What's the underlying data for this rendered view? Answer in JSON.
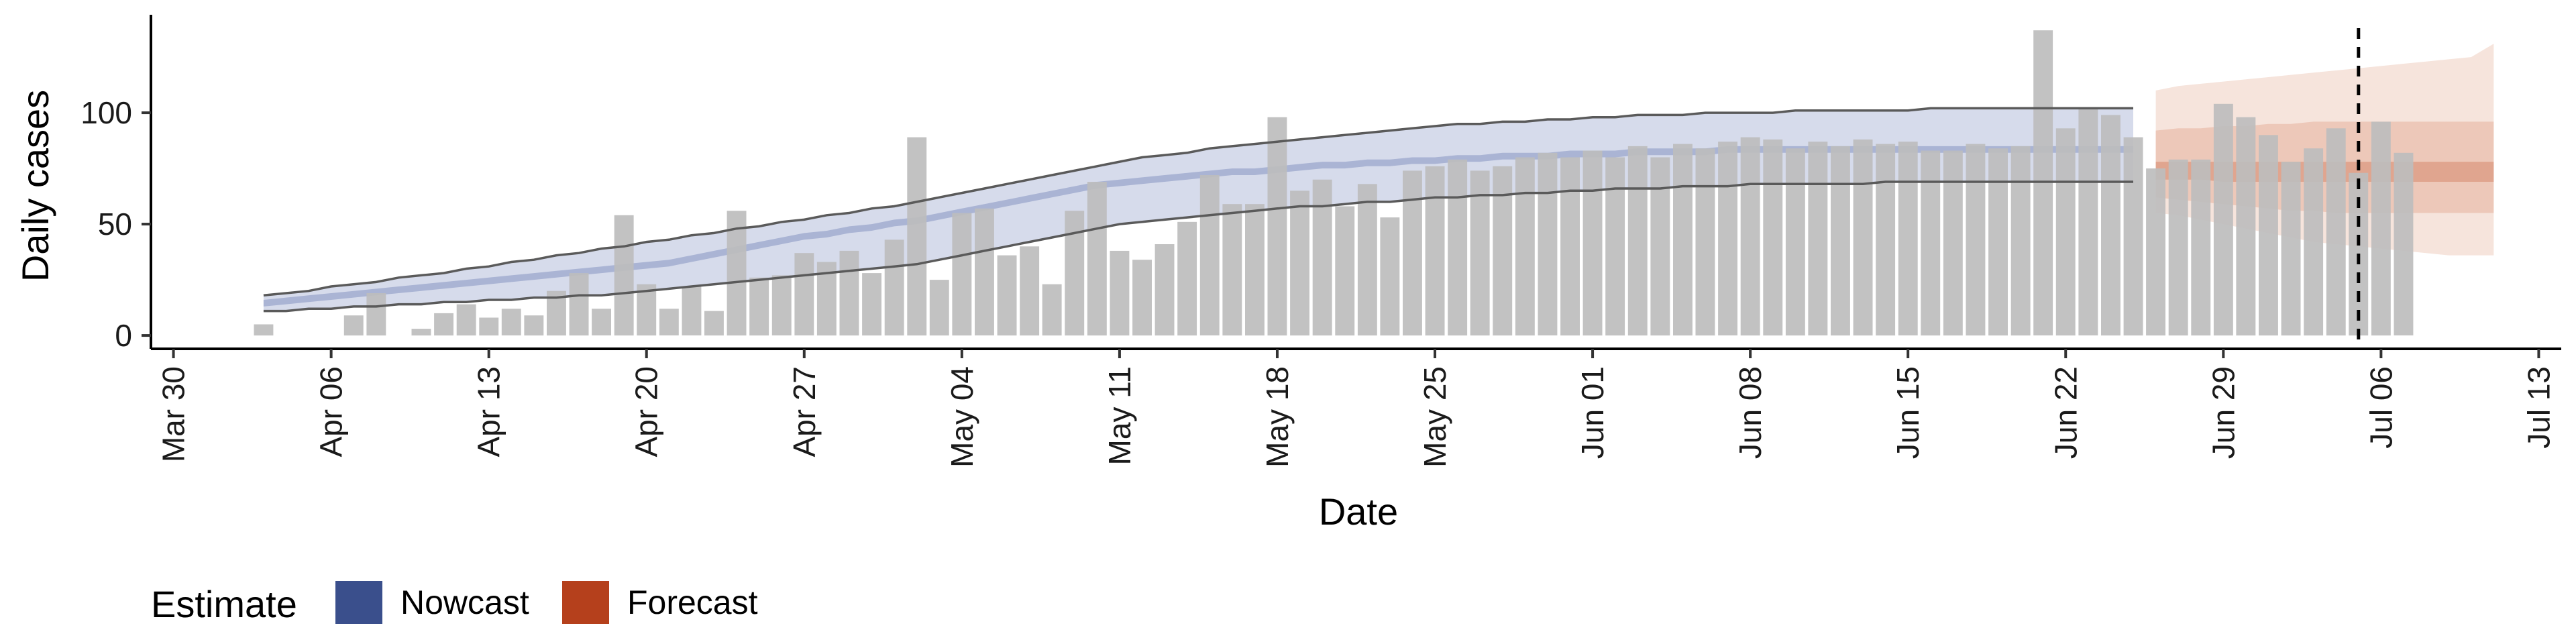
{
  "chart_data": {
    "type": "bar",
    "xlabel": "Date",
    "ylabel": "Daily cases",
    "x_axis_type": "date",
    "xlim": [
      "2020-03-29",
      "2020-07-14"
    ],
    "ylim": [
      -6,
      144
    ],
    "x_ticks": [
      {
        "date": "2020-03-30",
        "label": "Mar 30"
      },
      {
        "date": "2020-04-06",
        "label": "Apr 06"
      },
      {
        "date": "2020-04-13",
        "label": "Apr 13"
      },
      {
        "date": "2020-04-20",
        "label": "Apr 20"
      },
      {
        "date": "2020-04-27",
        "label": "Apr 27"
      },
      {
        "date": "2020-05-04",
        "label": "May 04"
      },
      {
        "date": "2020-05-11",
        "label": "May 11"
      },
      {
        "date": "2020-05-18",
        "label": "May 18"
      },
      {
        "date": "2020-05-25",
        "label": "May 25"
      },
      {
        "date": "2020-06-01",
        "label": "Jun 01"
      },
      {
        "date": "2020-06-08",
        "label": "Jun 08"
      },
      {
        "date": "2020-06-15",
        "label": "Jun 15"
      },
      {
        "date": "2020-06-22",
        "label": "Jun 22"
      },
      {
        "date": "2020-06-29",
        "label": "Jun 29"
      },
      {
        "date": "2020-07-06",
        "label": "Jul 06"
      },
      {
        "date": "2020-07-13",
        "label": "Jul 13"
      }
    ],
    "y_ticks": [
      0,
      50,
      100
    ],
    "grid": false,
    "legend_position": "bottom-left",
    "legend": {
      "title": "Estimate",
      "entries": [
        {
          "label": "Nowcast",
          "color": "#3a4f8c"
        },
        {
          "label": "Forecast",
          "color": "#b5401c"
        }
      ]
    },
    "colors": {
      "bars": "#bdbdbd",
      "nowcast_inner": "#7f8fbf",
      "nowcast_middle": "#aab4d4",
      "nowcast_outer": "#d6dbeb",
      "forecast_inner": "#e0a58f",
      "forecast_middle": "#edc8b9",
      "forecast_outer": "#f6e4dc",
      "interval_lines": "#5a5a5a",
      "vline": "#000000"
    },
    "vline_date": "2020-07-05",
    "bars": {
      "start_date": "2020-04-03",
      "values": [
        5,
        0,
        0,
        0,
        9,
        19,
        0,
        3,
        10,
        14,
        8,
        12,
        9,
        20,
        28,
        12,
        54,
        23,
        12,
        22,
        11,
        56,
        26,
        27,
        37,
        33,
        38,
        28,
        43,
        89,
        25,
        55,
        57,
        36,
        40,
        23,
        56,
        69,
        38,
        34,
        41,
        51,
        72,
        59,
        59,
        98,
        65,
        70,
        58,
        68,
        53,
        74,
        76,
        79,
        74,
        76,
        80,
        82,
        80,
        83,
        80,
        85,
        80,
        86,
        84,
        87,
        89,
        88,
        84,
        87,
        85,
        88,
        86,
        87,
        83,
        83,
        86,
        84,
        85,
        137,
        93,
        102,
        99,
        89,
        75,
        79,
        79,
        104,
        98,
        90,
        78,
        84,
        93,
        73,
        96,
        82
      ]
    },
    "nowcast": {
      "start_date": "2020-04-03",
      "outer_lower": [
        11,
        11,
        12,
        12,
        13,
        13,
        14,
        14,
        15,
        15,
        16,
        16,
        17,
        17,
        18,
        18,
        19,
        20,
        21,
        22,
        23,
        24,
        25,
        26,
        27,
        28,
        29,
        30,
        31,
        32,
        34,
        36,
        38,
        40,
        42,
        44,
        46,
        48,
        50,
        51,
        52,
        53,
        54,
        55,
        56,
        57,
        58,
        58,
        59,
        60,
        60,
        61,
        62,
        62,
        63,
        63,
        64,
        64,
        65,
        65,
        66,
        66,
        66,
        67,
        67,
        67,
        68,
        68,
        68,
        68,
        68,
        68,
        69,
        69,
        69,
        69,
        69,
        69,
        69,
        69,
        69,
        69,
        69,
        69
      ],
      "inner_lower": [
        13,
        14,
        15,
        16,
        17,
        18,
        19,
        20,
        21,
        22,
        23,
        24,
        25,
        26,
        27,
        28,
        29,
        30,
        31,
        33,
        35,
        37,
        39,
        41,
        43,
        44,
        46,
        47,
        49,
        50,
        52,
        54,
        56,
        58,
        60,
        62,
        64,
        66,
        67,
        68,
        69,
        70,
        71,
        72,
        72,
        73,
        74,
        75,
        75,
        76,
        76,
        77,
        77,
        78,
        78,
        79,
        79,
        79,
        80,
        80,
        80,
        81,
        81,
        81,
        81,
        82,
        82,
        82,
        82,
        82,
        82,
        82,
        82,
        82,
        82,
        82,
        82,
        82,
        82,
        82,
        82,
        82,
        82,
        82
      ],
      "inner_upper": [
        16,
        17,
        18,
        19,
        20,
        21,
        22,
        23,
        24,
        25,
        26,
        27,
        28,
        29,
        30,
        31,
        32,
        33,
        34,
        36,
        38,
        40,
        42,
        44,
        46,
        47,
        49,
        50,
        52,
        53,
        55,
        57,
        59,
        61,
        63,
        65,
        67,
        69,
        70,
        71,
        72,
        73,
        74,
        75,
        75,
        76,
        77,
        78,
        78,
        79,
        79,
        80,
        80,
        81,
        81,
        82,
        82,
        82,
        83,
        83,
        83,
        84,
        84,
        84,
        84,
        85,
        85,
        85,
        85,
        85,
        85,
        85,
        85,
        85,
        85,
        85,
        85,
        85,
        85,
        85,
        85,
        85,
        85,
        85
      ],
      "outer_upper": [
        18,
        19,
        20,
        22,
        23,
        24,
        26,
        27,
        28,
        30,
        31,
        33,
        34,
        36,
        37,
        39,
        40,
        42,
        43,
        45,
        46,
        48,
        49,
        51,
        52,
        54,
        55,
        57,
        58,
        60,
        62,
        64,
        66,
        68,
        70,
        72,
        74,
        76,
        78,
        80,
        81,
        82,
        84,
        85,
        86,
        87,
        88,
        89,
        90,
        91,
        92,
        93,
        94,
        95,
        95,
        96,
        96,
        97,
        97,
        98,
        98,
        99,
        99,
        99,
        100,
        100,
        100,
        100,
        101,
        101,
        101,
        101,
        101,
        101,
        102,
        102,
        102,
        102,
        102,
        102,
        102,
        102,
        102,
        102
      ]
    },
    "forecast": {
      "start_date": "2020-06-26",
      "outer_lower": [
        55,
        54,
        52,
        50,
        48,
        46,
        44,
        42,
        41,
        40,
        39,
        38,
        37,
        36,
        36,
        36
      ],
      "middle_lower": [
        62,
        61,
        60,
        59,
        58,
        57,
        56,
        56,
        55,
        55,
        55,
        55,
        55,
        55,
        55,
        55
      ],
      "inner_lower": [
        70,
        70,
        70,
        69,
        69,
        69,
        69,
        69,
        69,
        69,
        69,
        69,
        69,
        69,
        69,
        69
      ],
      "inner_upper": [
        78,
        78,
        78,
        78,
        78,
        78,
        78,
        78,
        78,
        78,
        78,
        78,
        78,
        78,
        78,
        78
      ],
      "middle_upper": [
        92,
        93,
        93,
        94,
        94,
        95,
        95,
        96,
        96,
        96,
        96,
        96,
        96,
        96,
        96,
        96
      ],
      "outer_upper": [
        110,
        112,
        113,
        114,
        115,
        116,
        117,
        118,
        119,
        120,
        121,
        122,
        123,
        124,
        125,
        131
      ]
    }
  }
}
